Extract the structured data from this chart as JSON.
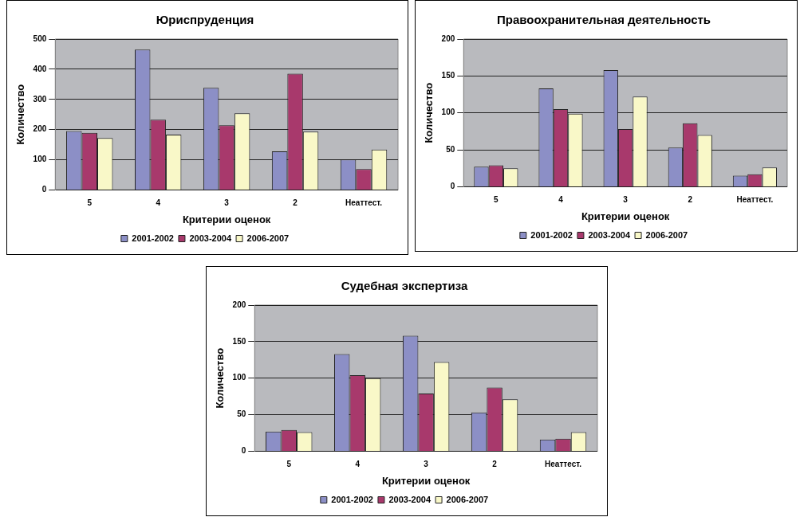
{
  "chart_data": [
    {
      "type": "bar",
      "title": "Юриспруденция",
      "xlabel": "Критерии оценок",
      "ylabel": "Количество",
      "categories": [
        "5",
        "4",
        "3",
        "2",
        "Неаттест."
      ],
      "series": [
        {
          "name": "2001-2002",
          "color": "#8c8fc6",
          "values": [
            195,
            465,
            338,
            128,
            101
          ]
        },
        {
          "name": "2003-2004",
          "color": "#a8396c",
          "values": [
            189,
            233,
            214,
            385,
            69
          ]
        },
        {
          "name": "2006-2007",
          "color": "#f9f8c8",
          "values": [
            172,
            183,
            254,
            193,
            134
          ]
        }
      ],
      "ylim": [
        0,
        500
      ],
      "yticks": [
        0,
        100,
        200,
        300,
        400,
        500
      ],
      "grid": "y",
      "legend": "bottom"
    },
    {
      "type": "bar",
      "title": "Правоохранительная деятельность",
      "xlabel": "Критерии оценок",
      "ylabel": "Количество",
      "categories": [
        "5",
        "4",
        "3",
        "2",
        "Неаттест."
      ],
      "series": [
        {
          "name": "2001-2002",
          "color": "#8c8fc6",
          "values": [
            27,
            133,
            158,
            53,
            15
          ]
        },
        {
          "name": "2003-2004",
          "color": "#a8396c",
          "values": [
            29,
            105,
            78,
            86,
            17
          ]
        },
        {
          "name": "2006-2007",
          "color": "#f9f8c8",
          "values": [
            25,
            99,
            122,
            70,
            26
          ]
        }
      ],
      "ylim": [
        0,
        200
      ],
      "yticks": [
        0,
        50,
        100,
        150,
        200
      ],
      "grid": "y",
      "legend": "bottom"
    },
    {
      "type": "bar",
      "title": "Судебная экспертиза",
      "xlabel": "Критерии оценок",
      "ylabel": "Количество",
      "categories": [
        "5",
        "4",
        "3",
        "2",
        "Неаттест."
      ],
      "series": [
        {
          "name": "2001-2002",
          "color": "#8c8fc6",
          "values": [
            27,
            133,
            158,
            53,
            16
          ]
        },
        {
          "name": "2003-2004",
          "color": "#a8396c",
          "values": [
            29,
            104,
            79,
            87,
            17
          ]
        },
        {
          "name": "2006-2007",
          "color": "#f9f8c8",
          "values": [
            26,
            100,
            122,
            71,
            26
          ]
        }
      ],
      "ylim": [
        0,
        200
      ],
      "yticks": [
        0,
        50,
        100,
        150,
        200
      ],
      "grid": "y",
      "legend": "bottom"
    }
  ]
}
